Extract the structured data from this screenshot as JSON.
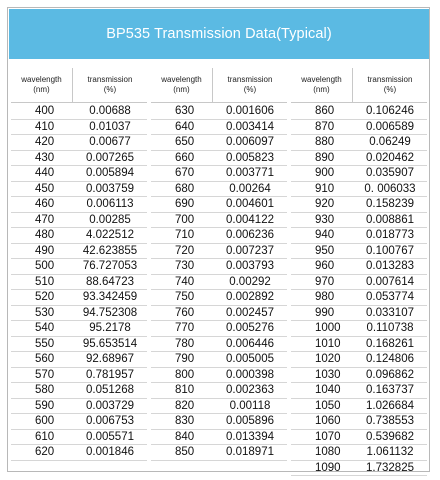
{
  "title": "BP535  Transmission Data(Typical)",
  "header": {
    "wavelength": [
      "wavelength",
      "(nm)"
    ],
    "transmission": [
      "transmission",
      "(%)"
    ]
  },
  "columns": [
    [
      [
        "400",
        "0.00688"
      ],
      [
        "410",
        "0.01037"
      ],
      [
        "420",
        "0.00677"
      ],
      [
        "430",
        "0.007265"
      ],
      [
        "440",
        "0.005894"
      ],
      [
        "450",
        "0.003759"
      ],
      [
        "460",
        "0.006113"
      ],
      [
        "470",
        "0.00285"
      ],
      [
        "480",
        "4.022512"
      ],
      [
        "490",
        "42.623855"
      ],
      [
        "500",
        "76.727053"
      ],
      [
        "510",
        "88.64723"
      ],
      [
        "520",
        "93.342459"
      ],
      [
        "530",
        "94.752308"
      ],
      [
        "540",
        "95.2178"
      ],
      [
        "550",
        "95.653514"
      ],
      [
        "560",
        "92.68967"
      ],
      [
        "570",
        "0.781957"
      ],
      [
        "580",
        "0.051268"
      ],
      [
        "590",
        "0.003729"
      ],
      [
        "600",
        "0.006753"
      ],
      [
        "610",
        "0.005571"
      ],
      [
        "620",
        "0.001846"
      ]
    ],
    [
      [
        "630",
        "0.001606"
      ],
      [
        "640",
        "0.003414"
      ],
      [
        "650",
        "0.006097"
      ],
      [
        "660",
        "0.005823"
      ],
      [
        "670",
        "0.003771"
      ],
      [
        "680",
        "0.00264"
      ],
      [
        "690",
        "0.004601"
      ],
      [
        "700",
        "0.004122"
      ],
      [
        "710",
        "0.006236"
      ],
      [
        "720",
        "0.007237"
      ],
      [
        "730",
        "0.003793"
      ],
      [
        "740",
        "0.00292"
      ],
      [
        "750",
        "0.002892"
      ],
      [
        "760",
        "0.002457"
      ],
      [
        "770",
        "0.005276"
      ],
      [
        "780",
        "0.006446"
      ],
      [
        "790",
        "0.005005"
      ],
      [
        "800",
        "0.000398"
      ],
      [
        "810",
        "0.002363"
      ],
      [
        "820",
        "0.00118"
      ],
      [
        "830",
        "0.005896"
      ],
      [
        "840",
        "0.013394"
      ],
      [
        "850",
        "0.018971"
      ]
    ],
    [
      [
        "860",
        "0.106246"
      ],
      [
        "870",
        "0.006589"
      ],
      [
        "880",
        "0.06249"
      ],
      [
        "890",
        "0.020462"
      ],
      [
        "900",
        "0.035907"
      ],
      [
        "910",
        "0. 006033"
      ],
      [
        "920",
        "0.158239"
      ],
      [
        "930",
        "0.008861"
      ],
      [
        "940",
        "0.018773"
      ],
      [
        "950",
        "0.100767"
      ],
      [
        "960",
        "0.013283"
      ],
      [
        "970",
        "0.007614"
      ],
      [
        "980",
        "0.053774"
      ],
      [
        "990",
        "0.033107"
      ],
      [
        "1000",
        "0.110738"
      ],
      [
        "1010",
        "0.168261"
      ],
      [
        "1020",
        "0.124806"
      ],
      [
        "1030",
        "0.096862"
      ],
      [
        "1040",
        "0.163737"
      ],
      [
        "1050",
        "1.026684"
      ],
      [
        "1060",
        "0.738553"
      ],
      [
        "1070",
        "0.539682"
      ],
      [
        "1080",
        "1.061132"
      ],
      [
        "1090",
        "1.732825"
      ]
    ]
  ]
}
